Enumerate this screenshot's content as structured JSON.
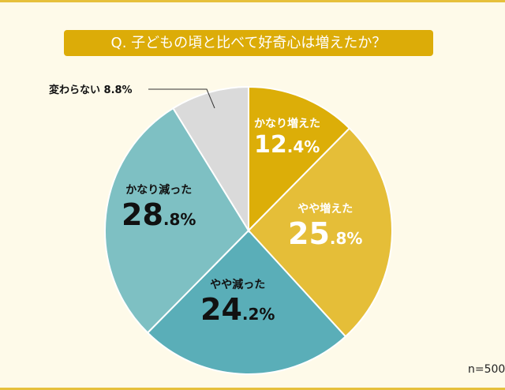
{
  "chart_data": {
    "type": "pie",
    "title": "Q. 子どもの頃と比べて好奇心は増えたか？",
    "slices": [
      {
        "label": "かなり増えた",
        "value": 12.4,
        "int": "12",
        "dec": ".4%",
        "color": "#dcae08"
      },
      {
        "label": "やや増えた",
        "value": 25.8,
        "int": "25",
        "dec": ".8%",
        "color": "#e5be38"
      },
      {
        "label": "やや減った",
        "value": 24.2,
        "int": "24",
        "dec": ".2%",
        "color": "#5aaeb8"
      },
      {
        "label": "かなり減った",
        "value": 28.8,
        "int": "28",
        "dec": ".8%",
        "color": "#7ec0c3"
      },
      {
        "label": "変わらない",
        "value": 8.8,
        "text": "変わらない 8.8%",
        "color": "#dadada"
      }
    ],
    "note": "n=500"
  }
}
